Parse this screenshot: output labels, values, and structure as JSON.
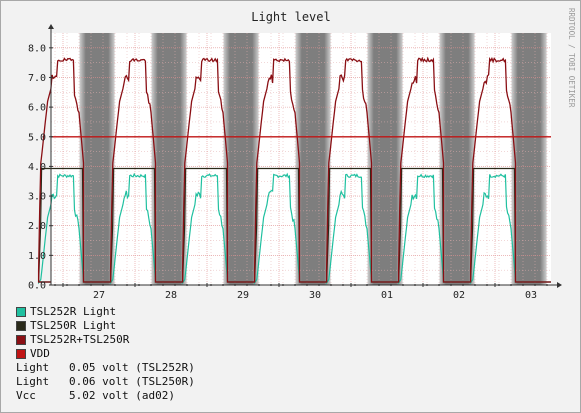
{
  "chart_data": {
    "type": "line",
    "title": "Light level",
    "watermark": "RRDTOOL / TOBI OETIKER",
    "ylim": [
      0,
      8.5
    ],
    "yticks": [
      "0.0",
      "1.0",
      "2.0",
      "3.0",
      "4.0",
      "5.0",
      "6.0",
      "7.0",
      "8.0"
    ],
    "x_day_labels": [
      "27",
      "28",
      "29",
      "30",
      "01",
      "02",
      "03"
    ],
    "night_color": "#7e7e7e",
    "series": [
      {
        "name": "TSL252R Light",
        "color": "#20c0a0",
        "day_values": [
          3.8,
          3.8,
          3.8,
          3.8,
          3.8,
          3.8,
          3.8
        ]
      },
      {
        "name": "TSL250R Light",
        "color": "#2a2a1a",
        "day_values": [
          3.93,
          3.93,
          3.93,
          3.93,
          3.93,
          3.93,
          3.93
        ]
      },
      {
        "name": "TSL252R+TSL250R",
        "color": "#8a0f14",
        "day_values": [
          7.7,
          7.7,
          7.7,
          7.7,
          7.7,
          7.7,
          7.7
        ]
      },
      {
        "name": "VDD",
        "color": "#c01515",
        "constant": 5.0
      }
    ],
    "summary": [
      {
        "label": "Light",
        "value": "0.05 volt (TSL252R)"
      },
      {
        "label": "Light",
        "value": "0.06 volt (TSL250R)"
      },
      {
        "label": "Vcc",
        "value": "5.02 volt (ad02)"
      }
    ]
  }
}
